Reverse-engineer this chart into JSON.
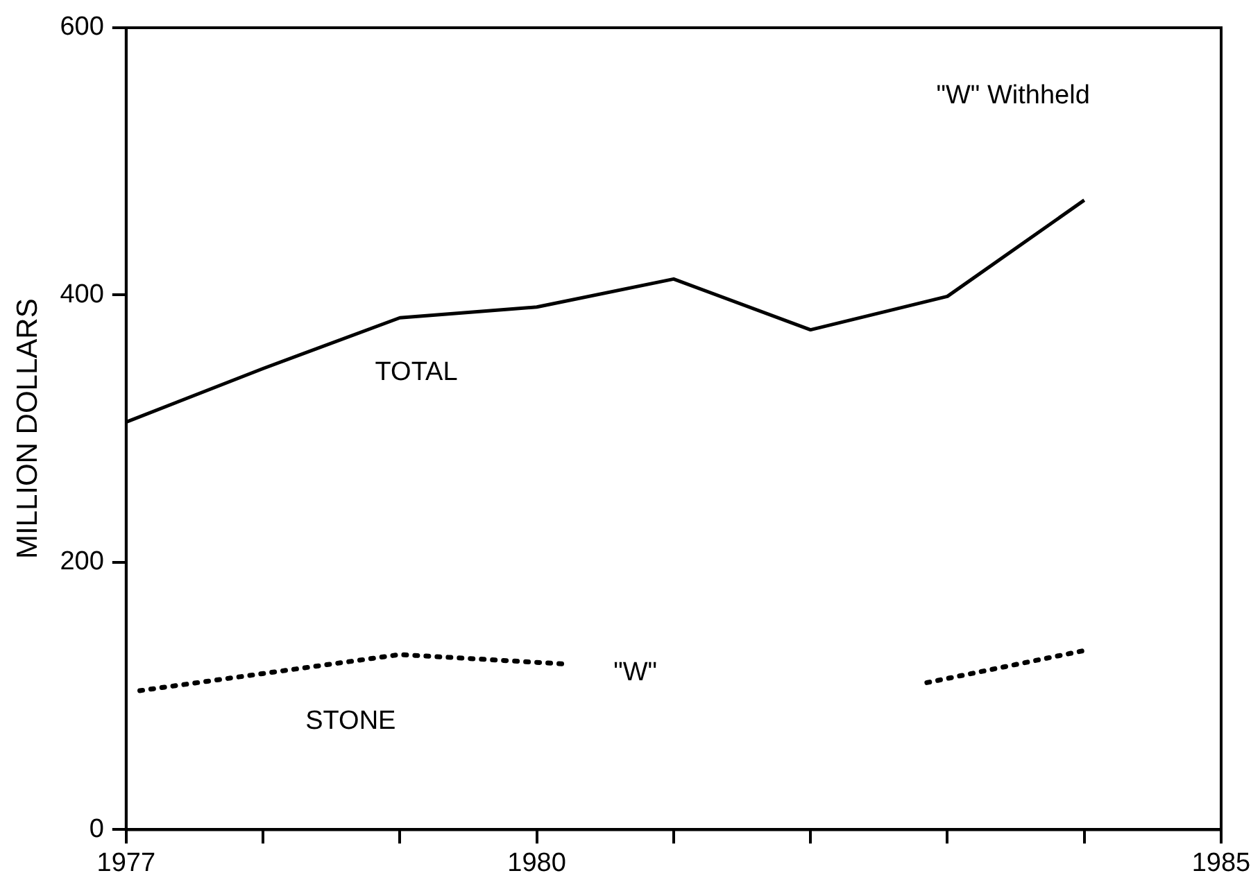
{
  "chart_data": {
    "type": "line",
    "ylabel": "MILLION DOLLARS",
    "x": [
      1977,
      1978,
      1979,
      1980,
      1981,
      1982,
      1983,
      1984
    ],
    "series": [
      {
        "color": "#000000",
        "values": [
          305,
          345,
          383,
          391,
          412,
          374,
          399,
          471
        ],
        "line_style": "solid"
      },
      {
        "color": "#000000",
        "x": [
          1977.1,
          1979,
          1980.2,
          1981,
          1982.85,
          1984
        ],
        "values": [
          104,
          131,
          124,
          null,
          110,
          134
        ],
        "line_style": "dotted"
      }
    ],
    "xlim": [
      1977,
      1985
    ],
    "xticks": [
      1977,
      {
        "value": 1978,
        "label": null
      },
      {
        "value": 1979,
        "label": null
      },
      1980,
      {
        "value": 1981,
        "label": null
      },
      {
        "value": 1982,
        "label": null
      },
      {
        "value": 1983,
        "label": null
      },
      {
        "value": 1984,
        "label": null
      },
      1985
    ],
    "ylim": [
      0,
      600
    ],
    "yticks": [
      0,
      200,
      400,
      600
    ],
    "grid": false,
    "legend": false,
    "marker": "none",
    "annotations": [
      "TOTAL",
      "STONE",
      "\"W\"",
      "\"W\" Withheld"
    ]
  }
}
